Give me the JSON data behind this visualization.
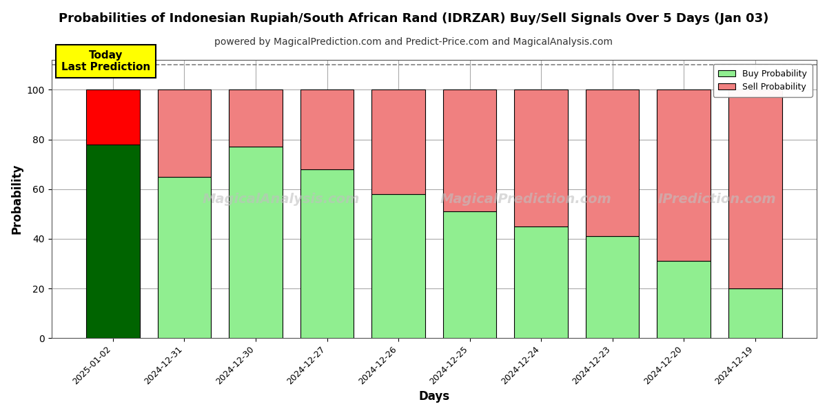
{
  "title": "Probabilities of Indonesian Rupiah/South African Rand (IDRZAR) Buy/Sell Signals Over 5 Days (Jan 03)",
  "subtitle": "powered by MagicalPrediction.com and Predict-Price.com and MagicalAnalysis.com",
  "xlabel": "Days",
  "ylabel": "Probability",
  "categories": [
    "2025-01-02",
    "2024-12-31",
    "2024-12-30",
    "2024-12-27",
    "2024-12-26",
    "2024-12-25",
    "2024-12-24",
    "2024-12-23",
    "2024-12-20",
    "2024-12-19"
  ],
  "buy_values": [
    78,
    65,
    77,
    68,
    58,
    51,
    45,
    41,
    31,
    20
  ],
  "sell_values": [
    22,
    35,
    23,
    32,
    42,
    49,
    55,
    59,
    69,
    80
  ],
  "first_bar_buy_color": "#006400",
  "first_bar_sell_color": "#FF0000",
  "other_buy_color": "#90EE90",
  "other_sell_color": "#F08080",
  "bar_edge_color": "#000000",
  "ylim_max": 112,
  "yticks": [
    0,
    20,
    40,
    60,
    80,
    100
  ],
  "dashed_line_y": 110,
  "legend_buy_label": "Buy Probability",
  "legend_sell_label": "Sell Probability",
  "today_label": "Today\nLast Prediction",
  "today_box_color": "#FFFF00",
  "watermark1": "MagicalAnalysis.com",
  "watermark2": "MagicalPrediction.com",
  "watermark3": "IPrediction.com",
  "background_color": "#ffffff",
  "grid_color": "#aaaaaa",
  "title_fontsize": 13,
  "subtitle_fontsize": 10,
  "axis_label_fontsize": 12,
  "tick_fontsize": 9
}
